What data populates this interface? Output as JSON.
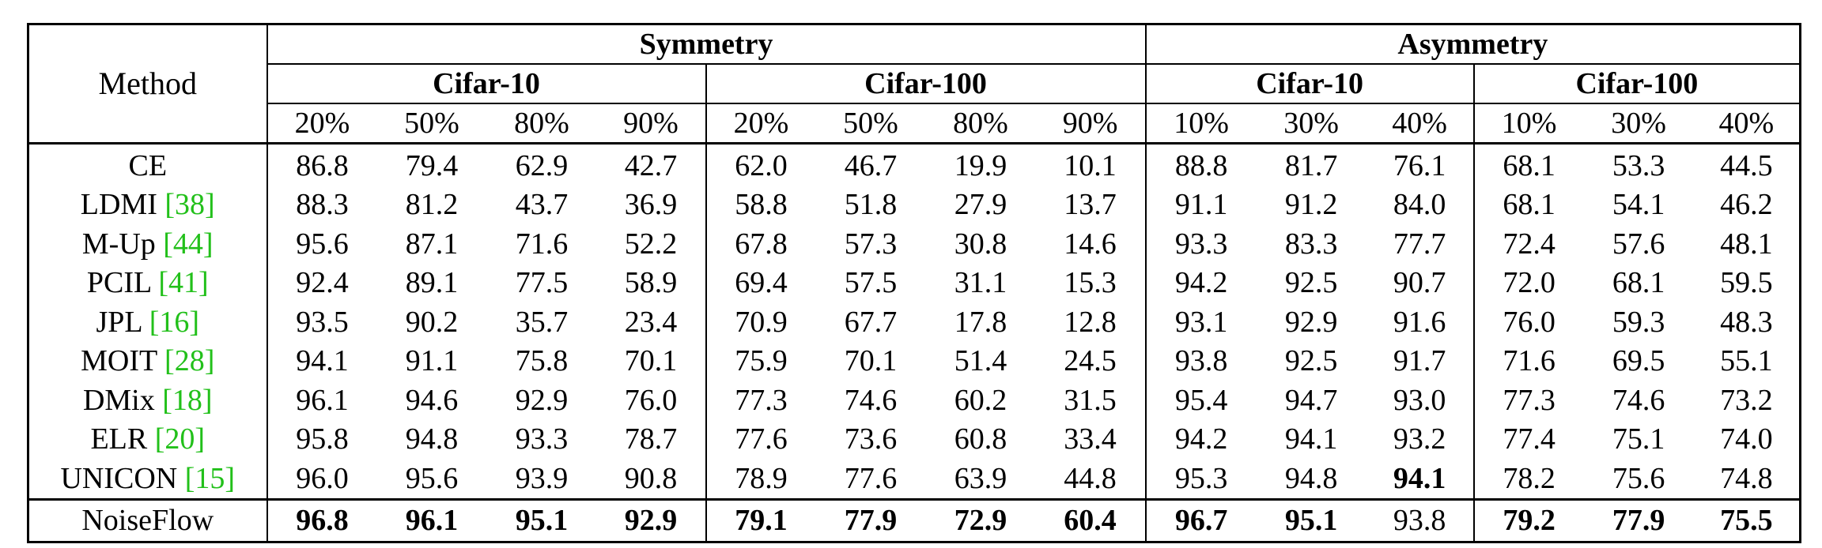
{
  "table": {
    "method_header": "Method",
    "groups": [
      {
        "label": "Symmetry",
        "datasets": [
          {
            "label": "Cifar-10",
            "rates": [
              "20%",
              "50%",
              "80%",
              "90%"
            ]
          },
          {
            "label": "Cifar-100",
            "rates": [
              "20%",
              "50%",
              "80%",
              "90%"
            ]
          }
        ]
      },
      {
        "label": "Asymmetry",
        "datasets": [
          {
            "label": "Cifar-10",
            "rates": [
              "10%",
              "30%",
              "40%"
            ]
          },
          {
            "label": "Cifar-100",
            "rates": [
              "10%",
              "30%",
              "40%"
            ]
          }
        ]
      }
    ],
    "rows": [
      {
        "method": "CE",
        "cite": "",
        "values": [
          "86.8",
          "79.4",
          "62.9",
          "42.7",
          "62.0",
          "46.7",
          "19.9",
          "10.1",
          "88.8",
          "81.7",
          "76.1",
          "68.1",
          "53.3",
          "44.5"
        ],
        "bold": []
      },
      {
        "method": "LDMI ",
        "cite": "[38]",
        "values": [
          "88.3",
          "81.2",
          "43.7",
          "36.9",
          "58.8",
          "51.8",
          "27.9",
          "13.7",
          "91.1",
          "91.2",
          "84.0",
          "68.1",
          "54.1",
          "46.2"
        ],
        "bold": []
      },
      {
        "method": "M-Up ",
        "cite": "[44]",
        "values": [
          "95.6",
          "87.1",
          "71.6",
          "52.2",
          "67.8",
          "57.3",
          "30.8",
          "14.6",
          "93.3",
          "83.3",
          "77.7",
          "72.4",
          "57.6",
          "48.1"
        ],
        "bold": []
      },
      {
        "method": "PCIL ",
        "cite": "[41]",
        "values": [
          "92.4",
          "89.1",
          "77.5",
          "58.9",
          "69.4",
          "57.5",
          "31.1",
          "15.3",
          "94.2",
          "92.5",
          "90.7",
          "72.0",
          "68.1",
          "59.5"
        ],
        "bold": []
      },
      {
        "method": "JPL ",
        "cite": "[16]",
        "values": [
          "93.5",
          "90.2",
          "35.7",
          "23.4",
          "70.9",
          "67.7",
          "17.8",
          "12.8",
          "93.1",
          "92.9",
          "91.6",
          "76.0",
          "59.3",
          "48.3"
        ],
        "bold": []
      },
      {
        "method": "MOIT ",
        "cite": "[28]",
        "values": [
          "94.1",
          "91.1",
          "75.8",
          "70.1",
          "75.9",
          "70.1",
          "51.4",
          "24.5",
          "93.8",
          "92.5",
          "91.7",
          "71.6",
          "69.5",
          "55.1"
        ],
        "bold": []
      },
      {
        "method": "DMix ",
        "cite": "[18]",
        "values": [
          "96.1",
          "94.6",
          "92.9",
          "76.0",
          "77.3",
          "74.6",
          "60.2",
          "31.5",
          "95.4",
          "94.7",
          "93.0",
          "77.3",
          "74.6",
          "73.2"
        ],
        "bold": []
      },
      {
        "method": "ELR ",
        "cite": "[20]",
        "values": [
          "95.8",
          "94.8",
          "93.3",
          "78.7",
          "77.6",
          "73.6",
          "60.8",
          "33.4",
          "94.2",
          "94.1",
          "93.2",
          "77.4",
          "75.1",
          "74.0"
        ],
        "bold": []
      },
      {
        "method": "UNICON ",
        "cite": "[15]",
        "values": [
          "96.0",
          "95.6",
          "93.9",
          "90.8",
          "78.9",
          "77.6",
          "63.9",
          "44.8",
          "95.3",
          "94.8",
          "94.1",
          "78.2",
          "75.6",
          "74.8"
        ],
        "bold": [
          10
        ]
      },
      {
        "method": "NoiseFlow",
        "cite": "",
        "values": [
          "96.8",
          "96.1",
          "95.1",
          "92.9",
          "79.1",
          "77.9",
          "72.9",
          "60.4",
          "96.7",
          "95.1",
          "93.8",
          "79.2",
          "77.9",
          "75.5"
        ],
        "bold": [
          0,
          1,
          2,
          3,
          4,
          5,
          6,
          7,
          8,
          9,
          11,
          12,
          13
        ]
      }
    ]
  },
  "colors": {
    "text": "#000000",
    "citation": "#22c01a",
    "rule": "#000000"
  }
}
